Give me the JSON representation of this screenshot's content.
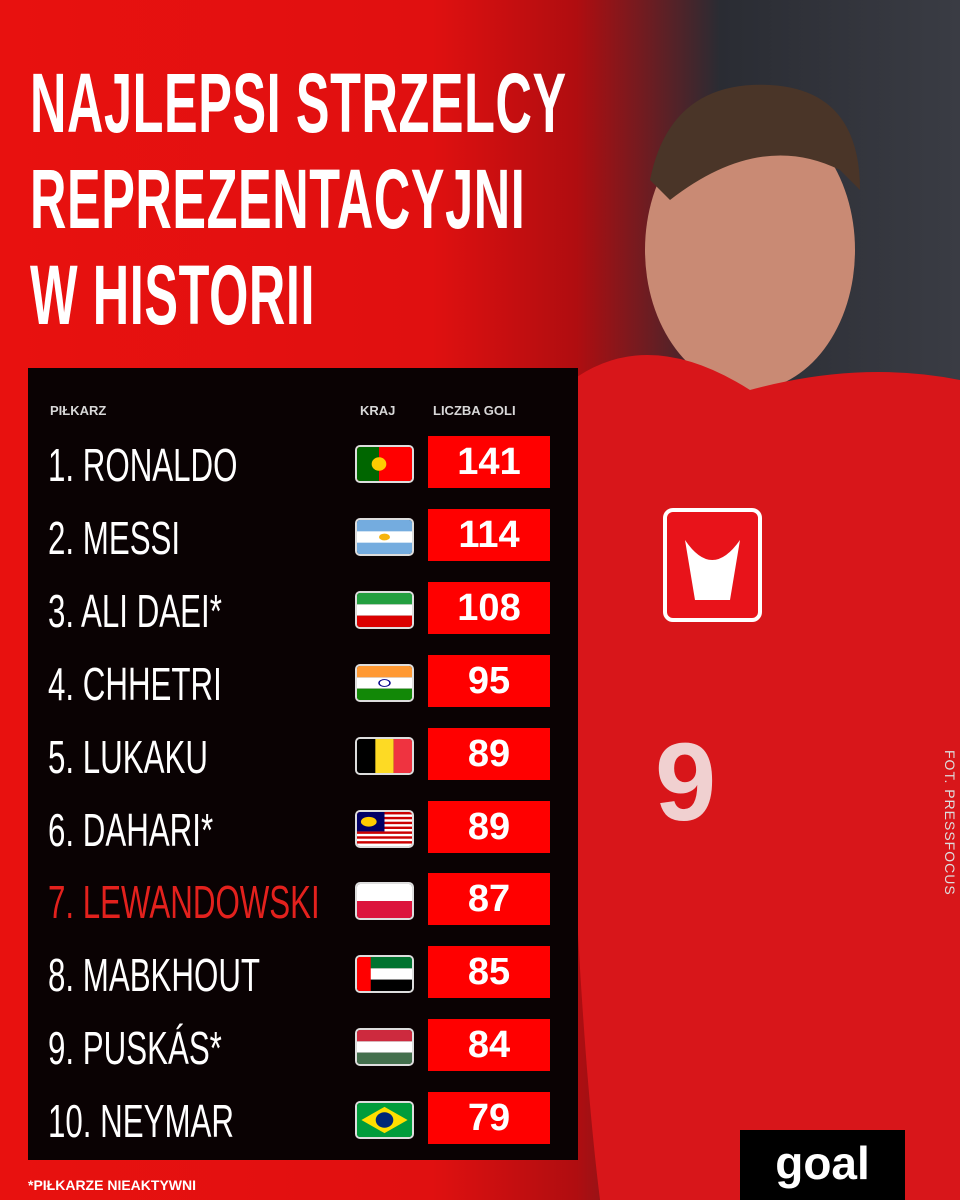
{
  "title": [
    "NAJLEPSI STRZELCY",
    "REPREZENTACYJNI",
    "W HISTORII"
  ],
  "headers": {
    "player": "PIŁKARZ",
    "country": "KRAJ",
    "goals": "LICZBA GOLI"
  },
  "rows": [
    {
      "name": "1. RONALDO",
      "country": "portugal",
      "goals": "141"
    },
    {
      "name": "2. MESSI",
      "country": "argentina",
      "goals": "114"
    },
    {
      "name": "3. ALI DAEI*",
      "country": "iran",
      "goals": "108"
    },
    {
      "name": "4. CHHETRI",
      "country": "india",
      "goals": "95"
    },
    {
      "name": "5. LUKAKU",
      "country": "belgium",
      "goals": "89"
    },
    {
      "name": "6. DAHARI*",
      "country": "malaysia",
      "goals": "89"
    },
    {
      "name": "7. LEWANDOWSKI",
      "country": "poland",
      "goals": "87",
      "highlight": true
    },
    {
      "name": "8. MABKHOUT",
      "country": "uae",
      "goals": "85"
    },
    {
      "name": "9. PUSKÁS*",
      "country": "hungary",
      "goals": "84"
    },
    {
      "name": "10. NEYMAR",
      "country": "brazil",
      "goals": "79"
    }
  ],
  "footnote": "*PIŁKARZE NIEAKTYWNI",
  "logo": "goal",
  "credit": "FOT. PRESSFOCUS",
  "colors": {
    "accent": "#ff0000",
    "highlight": "#e3211d",
    "panel": "#0a0203"
  }
}
